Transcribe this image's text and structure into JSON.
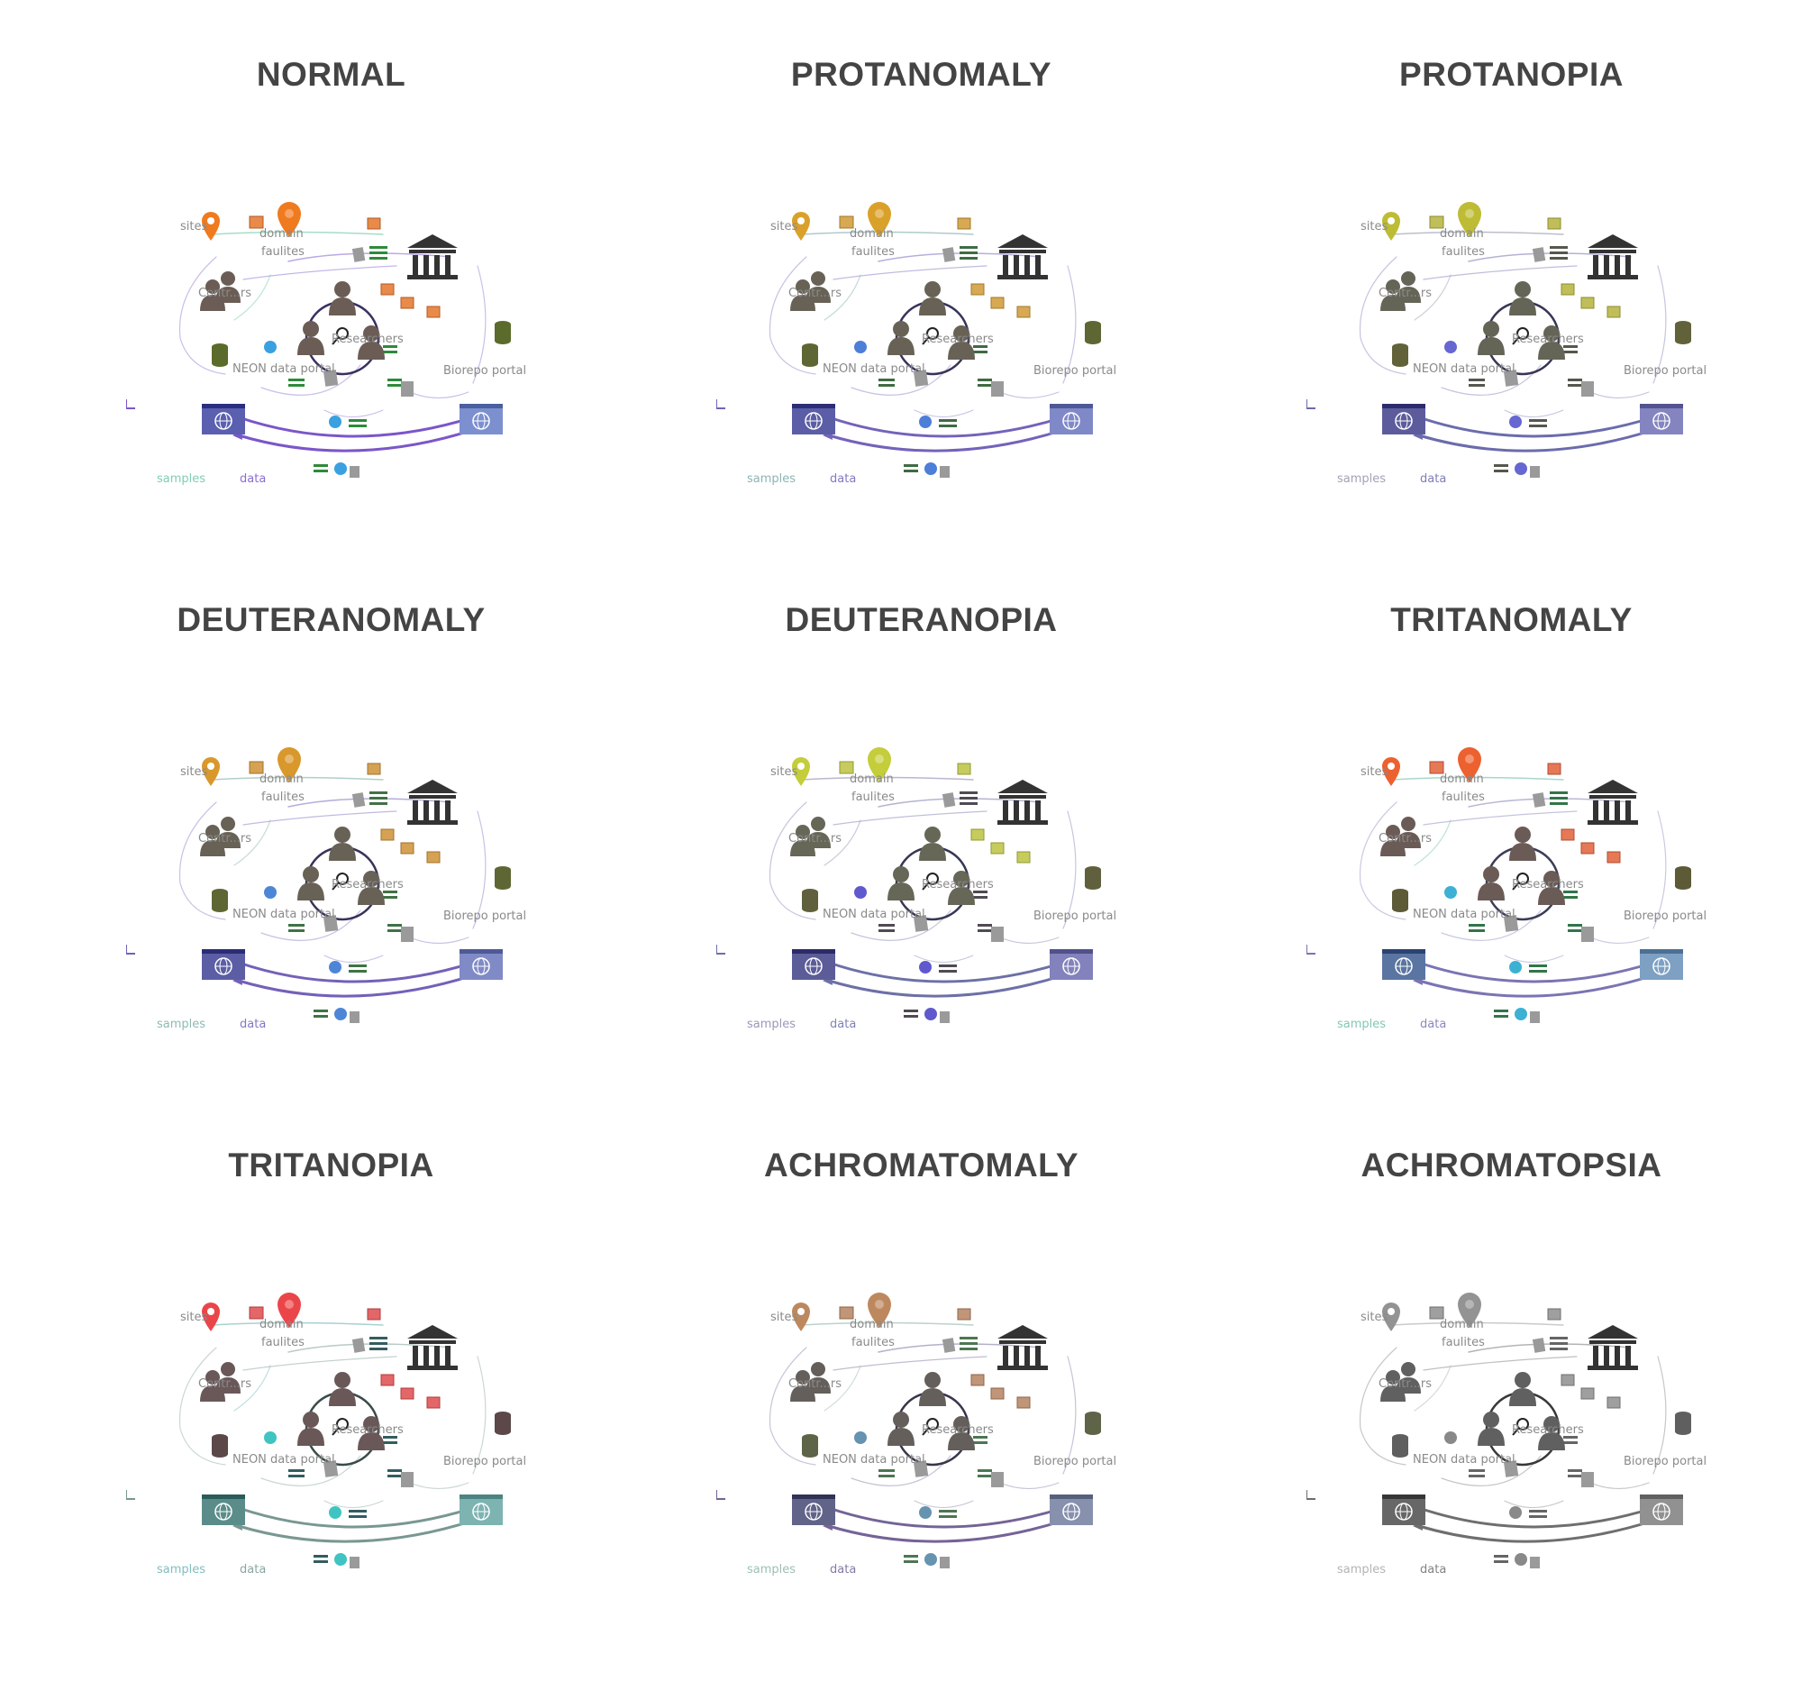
{
  "panels": [
    {
      "title": "NORMAL",
      "filter": "none"
    },
    {
      "title": "PROTANOMALY",
      "filter": "protanomaly"
    },
    {
      "title": "PROTANOPIA",
      "filter": "protanopia"
    },
    {
      "title": "DEUTERANOMALY",
      "filter": "deuteranomaly"
    },
    {
      "title": "DEUTERANOPIA",
      "filter": "deuteranopia"
    },
    {
      "title": "TRITANOMALY",
      "filter": "tritanomaly"
    },
    {
      "title": "TRITANOPIA",
      "filter": "tritanopia"
    },
    {
      "title": "ACHROMATOMALY",
      "filter": "achromatomaly"
    },
    {
      "title": "ACHROMATOPSIA",
      "filter": "achromatopsia"
    }
  ],
  "diagram_labels": {
    "sites": "sites",
    "domain": "domain",
    "facilities": "faulites",
    "contributors": "Contr...rs",
    "researchers": "Researchers",
    "neon_portal": "NEON data portal",
    "biorepo_portal": "Biorepo portal",
    "legend_samples": "samples",
    "legend_data": "data"
  },
  "colors": {
    "pin": "#f07a1e",
    "box": "#e88a4a",
    "people": "#6b5d55",
    "institution": "#333333",
    "database": "#5b6b2b",
    "portal": "#5a5fb0",
    "portal_light": "#7c8fcf",
    "arrow_data": "#8a6fd0",
    "arrow_samples": "#7fcfb0",
    "gear": "#3aa0e0",
    "matrix": "#2e8a3a"
  },
  "icons": [
    "map-pin-icon",
    "box-icon",
    "people-icon",
    "institution-icon",
    "database-icon",
    "globe-icon",
    "gear-icon",
    "document-icon",
    "magnifier-icon"
  ]
}
